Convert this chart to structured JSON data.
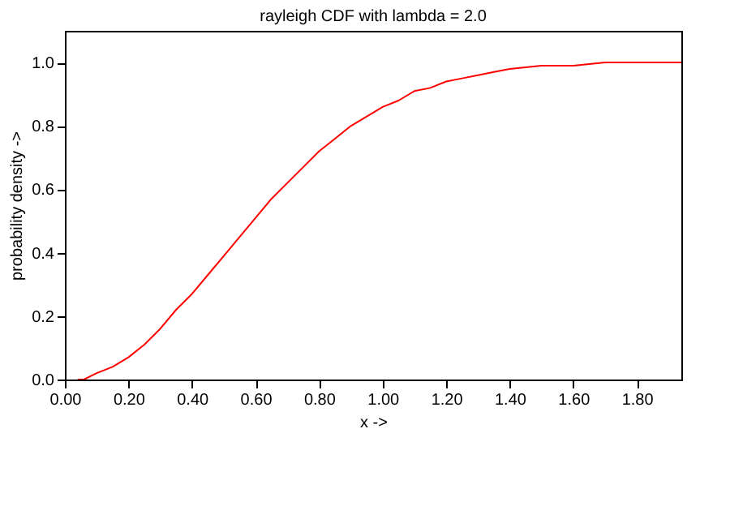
{
  "chart_data": {
    "type": "line",
    "title": "rayleigh CDF with lambda = 2.0",
    "xlabel": "x ->",
    "ylabel": "probability density ->",
    "x": [
      0.04,
      0.06,
      0.1,
      0.15,
      0.2,
      0.25,
      0.3,
      0.35,
      0.4,
      0.45,
      0.5,
      0.55,
      0.6,
      0.65,
      0.7,
      0.75,
      0.8,
      0.85,
      0.9,
      0.95,
      1.0,
      1.05,
      1.1,
      1.15,
      1.2,
      1.25,
      1.3,
      1.35,
      1.4,
      1.5,
      1.6,
      1.7,
      1.94
    ],
    "series": [
      {
        "color": "#ff0000",
        "values": [
          0,
          0,
          0.02,
          0.04,
          0.07,
          0.11,
          0.16,
          0.22,
          0.27,
          0.33,
          0.39,
          0.45,
          0.51,
          0.57,
          0.62,
          0.67,
          0.72,
          0.76,
          0.8,
          0.83,
          0.86,
          0.88,
          0.91,
          0.92,
          0.94,
          0.95,
          0.96,
          0.97,
          0.98,
          0.99,
          0.99,
          1.0,
          1.0
        ]
      }
    ],
    "xlim": [
      0,
      1.94
    ],
    "ylim": [
      0,
      1.1
    ],
    "xticks": [
      {
        "value": 0,
        "label": "0.00"
      },
      {
        "value": 0.2,
        "label": "0.20"
      },
      {
        "value": 0.4,
        "label": "0.40"
      },
      {
        "value": 0.6,
        "label": "0.60"
      },
      {
        "value": 0.8,
        "label": "0.80"
      },
      {
        "value": 1.0,
        "label": "1.00"
      },
      {
        "value": 1.2,
        "label": "1.20"
      },
      {
        "value": 1.4,
        "label": "1.40"
      },
      {
        "value": 1.6,
        "label": "1.60"
      },
      {
        "value": 1.8,
        "label": "1.80"
      }
    ],
    "yticks": [
      {
        "value": 0,
        "label": "0.0"
      },
      {
        "value": 0.2,
        "label": "0.2"
      },
      {
        "value": 0.4,
        "label": "0.4"
      },
      {
        "value": 0.6,
        "label": "0.6"
      },
      {
        "value": 0.8,
        "label": "0.8"
      },
      {
        "value": 1.0,
        "label": "1.0"
      }
    ],
    "grid": false,
    "marker": "none",
    "line_style": "solid"
  }
}
